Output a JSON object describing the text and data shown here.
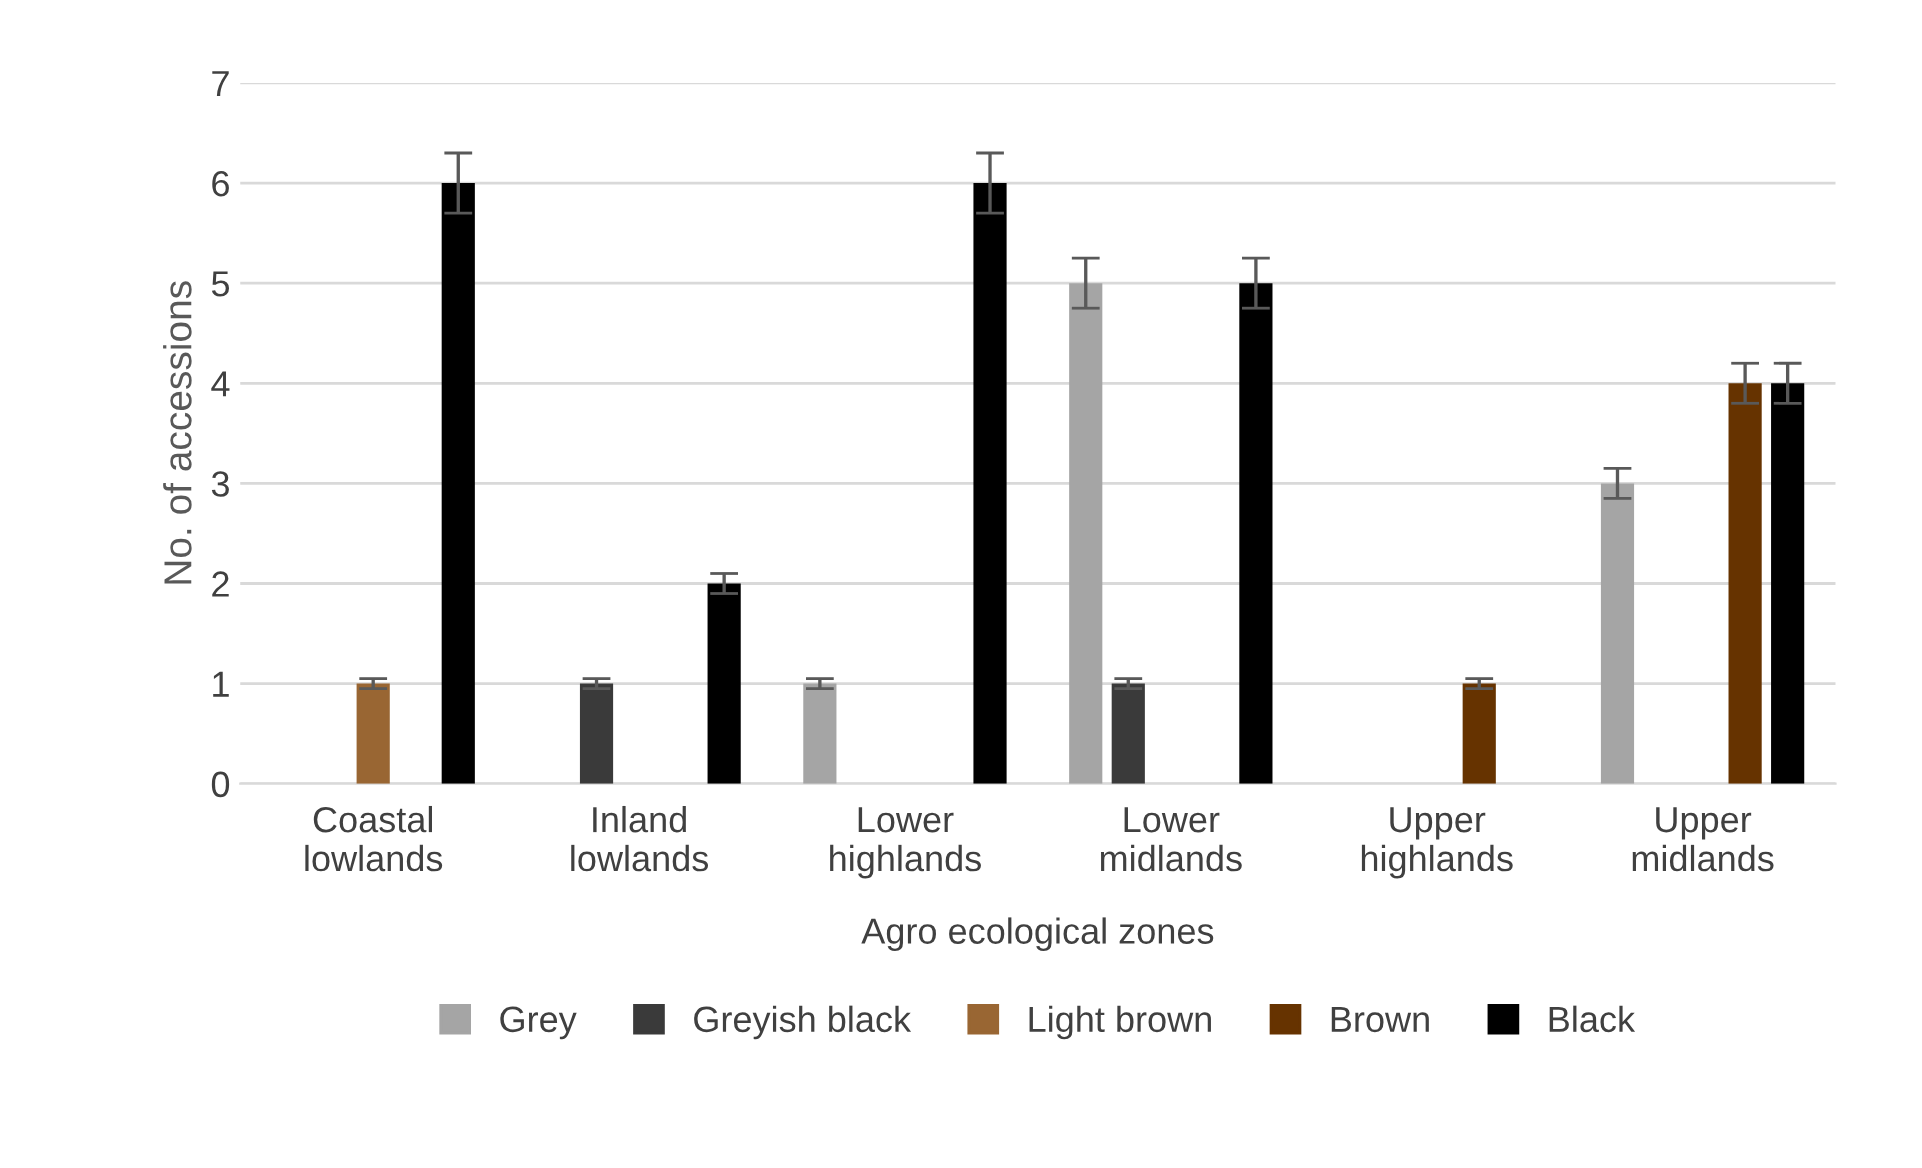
{
  "chart_data": {
    "type": "bar",
    "xlabel": "Agro ecological zones",
    "ylabel": "No. of accessions",
    "categories": [
      "Coastal lowlands",
      "Inland lowlands",
      "Lower highlands",
      "Lower midlands",
      "Upper highlands",
      "Upper midlands"
    ],
    "series": [
      {
        "name": "Grey",
        "color": "#a5a5a5",
        "values": [
          0,
          0,
          1,
          5,
          0,
          3
        ],
        "errors": [
          null,
          null,
          0.05,
          0.25,
          null,
          0.15
        ]
      },
      {
        "name": "Greyish black",
        "color": "#3a3a3a",
        "values": [
          0,
          1,
          0,
          1,
          0,
          0
        ],
        "errors": [
          null,
          0.05,
          null,
          0.05,
          null,
          null
        ]
      },
      {
        "name": "Light brown",
        "color": "#996633",
        "values": [
          1,
          0,
          0,
          0,
          0,
          0
        ],
        "errors": [
          0.05,
          null,
          null,
          null,
          null,
          null
        ]
      },
      {
        "name": "Brown",
        "color": "#663300",
        "values": [
          0,
          0,
          0,
          0,
          1,
          4
        ],
        "errors": [
          null,
          null,
          null,
          null,
          0.05,
          0.2
        ]
      },
      {
        "name": "Black",
        "color": "#000000",
        "values": [
          6,
          2,
          6,
          5,
          0,
          4
        ],
        "errors": [
          0.3,
          0.1,
          0.3,
          0.25,
          null,
          0.2
        ]
      }
    ],
    "ylim": [
      0,
      7
    ],
    "yticks": [
      0,
      1,
      2,
      3,
      4,
      5,
      6,
      7
    ],
    "grid": "y",
    "legend": "bottom"
  }
}
